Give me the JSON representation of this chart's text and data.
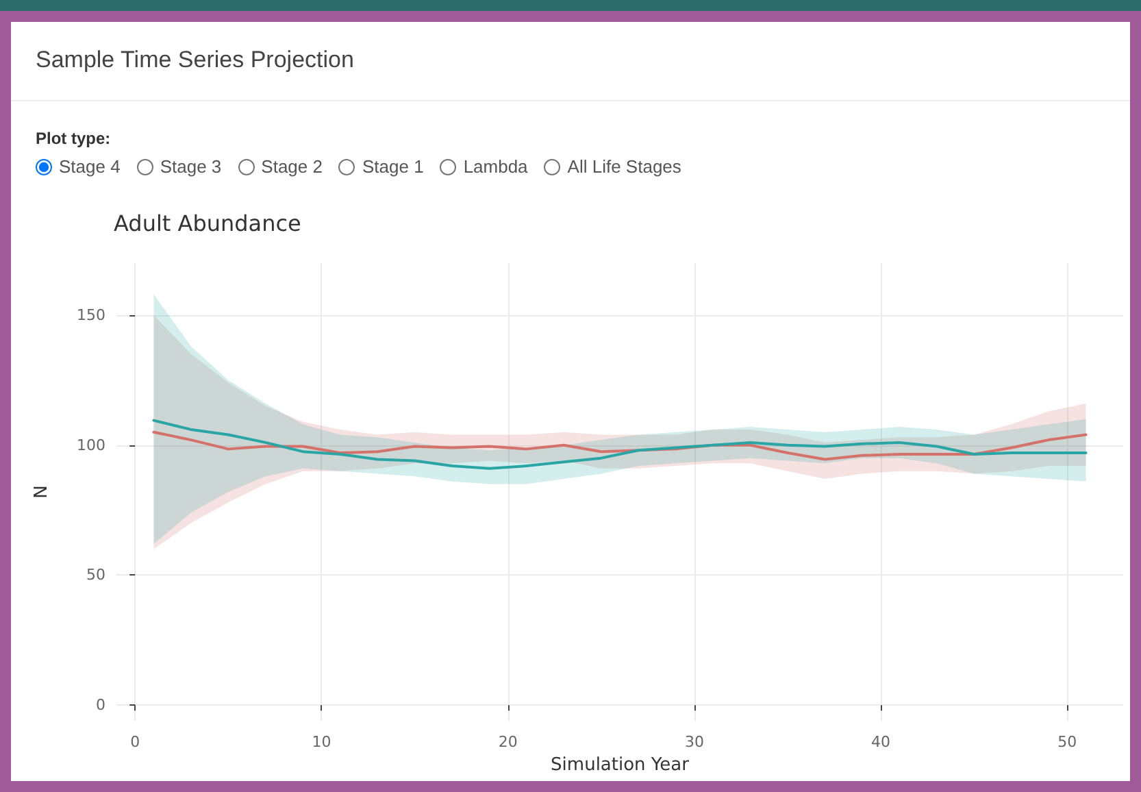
{
  "chart_data": {
    "type": "line",
    "title": "Sample Time Series Projection",
    "subtitle": "Adult Abundance",
    "annotations": [
      "Plot type:",
      "Stage 4",
      "Stage 3",
      "Stage 2",
      "Stage 1",
      "Lambda",
      "All Life Stages"
    ],
    "xlabel": "Simulation Year",
    "ylabel": "N",
    "xlim": [
      -1,
      53
    ],
    "xticks": [
      0,
      10,
      20,
      30,
      40,
      50
    ],
    "ylim": [
      -6,
      170
    ],
    "yticks": [
      0,
      50,
      100,
      150
    ],
    "grid": true,
    "marker": "none",
    "line_style": "solid",
    "series": [
      {
        "color": "#d4726a",
        "x": [
          1,
          3,
          5,
          7,
          9,
          11,
          13,
          15,
          17,
          19,
          21,
          23,
          25,
          27,
          29,
          31,
          33,
          35,
          37,
          39,
          41,
          43,
          45,
          47,
          49,
          51
        ],
        "values": [
          105,
          102,
          98.5,
          99.5,
          99.5,
          97,
          97.5,
          99.5,
          99,
          99.5,
          98.5,
          100,
          97.5,
          98,
          98.5,
          100,
          100,
          97,
          94.5,
          96,
          96.5,
          96.5,
          96.5,
          99,
          102,
          104
        ],
        "lower": [
          60,
          70,
          78,
          85,
          90,
          90,
          91,
          93,
          93,
          94,
          93,
          94,
          91,
          91,
          92,
          93,
          93,
          90,
          87,
          89,
          90,
          90,
          89,
          90,
          92,
          92
        ],
        "upper": [
          150,
          135,
          124,
          115,
          109,
          106,
          104,
          105,
          104,
          104,
          104,
          105,
          104,
          104,
          104,
          106,
          106,
          104,
          101,
          102,
          103,
          103,
          104,
          108,
          113,
          116
        ]
      },
      {
        "color": "#2aa5a5",
        "x": [
          1,
          3,
          5,
          7,
          9,
          11,
          13,
          15,
          17,
          19,
          21,
          23,
          25,
          27,
          29,
          31,
          33,
          35,
          37,
          39,
          41,
          43,
          45,
          47,
          49,
          51
        ],
        "values": [
          109.5,
          106,
          104,
          101,
          97.5,
          96.5,
          94.5,
          94,
          92,
          91,
          92,
          93.5,
          95,
          98,
          99,
          100,
          101,
          100,
          99.5,
          100.5,
          101,
          99.5,
          96.5,
          97,
          97,
          97
        ],
        "lower": [
          62,
          74,
          82,
          88,
          91,
          90,
          89,
          88,
          86,
          85,
          85,
          87,
          89,
          92,
          93,
          94,
          95,
          94,
          93,
          95,
          95,
          93,
          89,
          88,
          87,
          86
        ],
        "upper": [
          158,
          138,
          125,
          116,
          108,
          104,
          103,
          101,
          99,
          98,
          99,
          100,
          102,
          104,
          105,
          106,
          107,
          106,
          105,
          106,
          107,
          106,
          104,
          106,
          108,
          110
        ]
      }
    ]
  }
}
